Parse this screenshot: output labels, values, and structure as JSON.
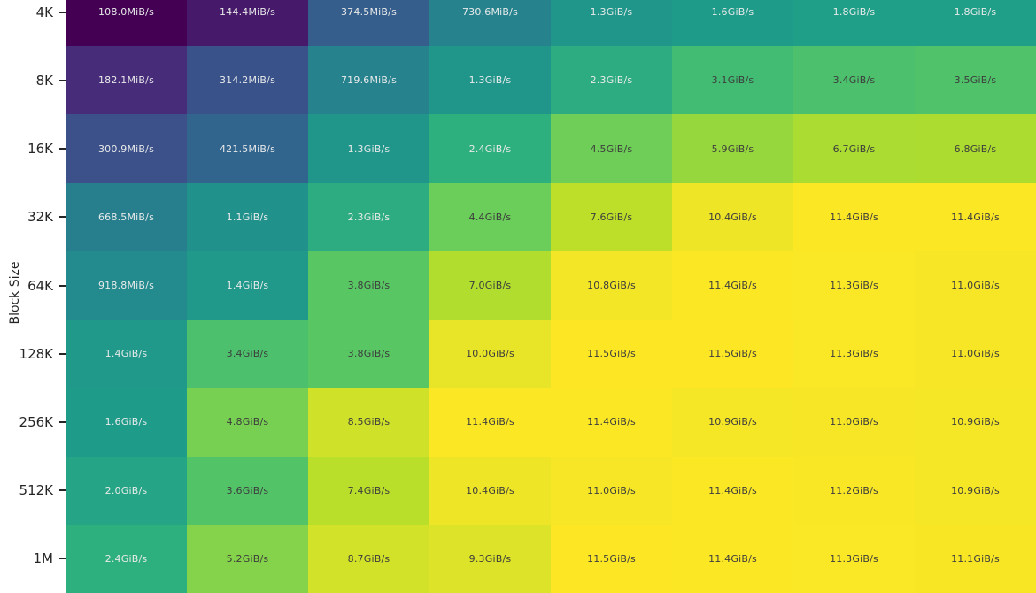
{
  "figure": {
    "background_color": "#ffffff",
    "axis_text_color": "#262626"
  },
  "chart_data": {
    "type": "heatmap",
    "title": "",
    "xlabel": "",
    "ylabel": "Block Size",
    "colormap": "viridis",
    "color_norm": "log",
    "value_unit": "MiB/s",
    "vmin_mib_per_s": 108.0,
    "vmax_mib_per_s": 11776.0,
    "row_labels": [
      "4K",
      "8K",
      "16K",
      "32K",
      "64K",
      "128K",
      "256K",
      "512K",
      "1M"
    ],
    "num_columns": 8,
    "cell_labels": [
      [
        "108.0MiB/s",
        "144.4MiB/s",
        "374.5MiB/s",
        "730.6MiB/s",
        "1.3GiB/s",
        "1.6GiB/s",
        "1.8GiB/s",
        "1.8GiB/s"
      ],
      [
        "182.1MiB/s",
        "314.2MiB/s",
        "719.6MiB/s",
        "1.3GiB/s",
        "2.3GiB/s",
        "3.1GiB/s",
        "3.4GiB/s",
        "3.5GiB/s"
      ],
      [
        "300.9MiB/s",
        "421.5MiB/s",
        "1.3GiB/s",
        "2.4GiB/s",
        "4.5GiB/s",
        "5.9GiB/s",
        "6.7GiB/s",
        "6.8GiB/s"
      ],
      [
        "668.5MiB/s",
        "1.1GiB/s",
        "2.3GiB/s",
        "4.4GiB/s",
        "7.6GiB/s",
        "10.4GiB/s",
        "11.4GiB/s",
        "11.4GiB/s"
      ],
      [
        "918.8MiB/s",
        "1.4GiB/s",
        "3.8GiB/s",
        "7.0GiB/s",
        "10.8GiB/s",
        "11.4GiB/s",
        "11.3GiB/s",
        "11.0GiB/s"
      ],
      [
        "1.4GiB/s",
        "3.4GiB/s",
        "3.8GiB/s",
        "10.0GiB/s",
        "11.5GiB/s",
        "11.5GiB/s",
        "11.3GiB/s",
        "11.0GiB/s"
      ],
      [
        "1.6GiB/s",
        "4.8GiB/s",
        "8.5GiB/s",
        "11.4GiB/s",
        "11.4GiB/s",
        "10.9GiB/s",
        "11.0GiB/s",
        "10.9GiB/s"
      ],
      [
        "2.0GiB/s",
        "3.6GiB/s",
        "7.4GiB/s",
        "10.4GiB/s",
        "11.0GiB/s",
        "11.4GiB/s",
        "11.2GiB/s",
        "10.9GiB/s"
      ],
      [
        "2.4GiB/s",
        "5.2GiB/s",
        "8.7GiB/s",
        "9.3GiB/s",
        "11.5GiB/s",
        "11.4GiB/s",
        "11.3GiB/s",
        "11.1GiB/s"
      ]
    ],
    "cell_values_mib_per_s": [
      [
        108.0,
        144.4,
        374.5,
        730.6,
        1331.2,
        1638.4,
        1843.2,
        1843.2
      ],
      [
        182.1,
        314.2,
        719.6,
        1331.2,
        2355.2,
        3174.4,
        3481.6,
        3584.0
      ],
      [
        300.9,
        421.5,
        1331.2,
        2457.6,
        4608.0,
        6041.6,
        6860.8,
        6963.2
      ],
      [
        668.5,
        1126.4,
        2355.2,
        4505.6,
        7782.4,
        10649.6,
        11673.6,
        11673.6
      ],
      [
        918.8,
        1433.6,
        3891.2,
        7168.0,
        11059.2,
        11673.6,
        11571.2,
        11264.0
      ],
      [
        1433.6,
        3481.6,
        3891.2,
        10240.0,
        11776.0,
        11776.0,
        11571.2,
        11264.0
      ],
      [
        1638.4,
        4915.2,
        8704.0,
        11673.6,
        11673.6,
        11161.6,
        11264.0,
        11161.6
      ],
      [
        2048.0,
        3686.4,
        7577.6,
        10649.6,
        11264.0,
        11673.6,
        11468.8,
        11161.6
      ],
      [
        2457.6,
        5324.8,
        8908.8,
        9523.2,
        11776.0,
        11673.6,
        11571.2,
        11366.4
      ]
    ],
    "annotation_text_colors": {
      "light_cells": "#3d3d3d",
      "dark_cells": "#e8eaea"
    },
    "layout": {
      "grid": false,
      "legend": false,
      "x_tick_labels_visible": false,
      "top_row_partially_cropped": true,
      "bottom_row_partially_cropped": true
    }
  }
}
